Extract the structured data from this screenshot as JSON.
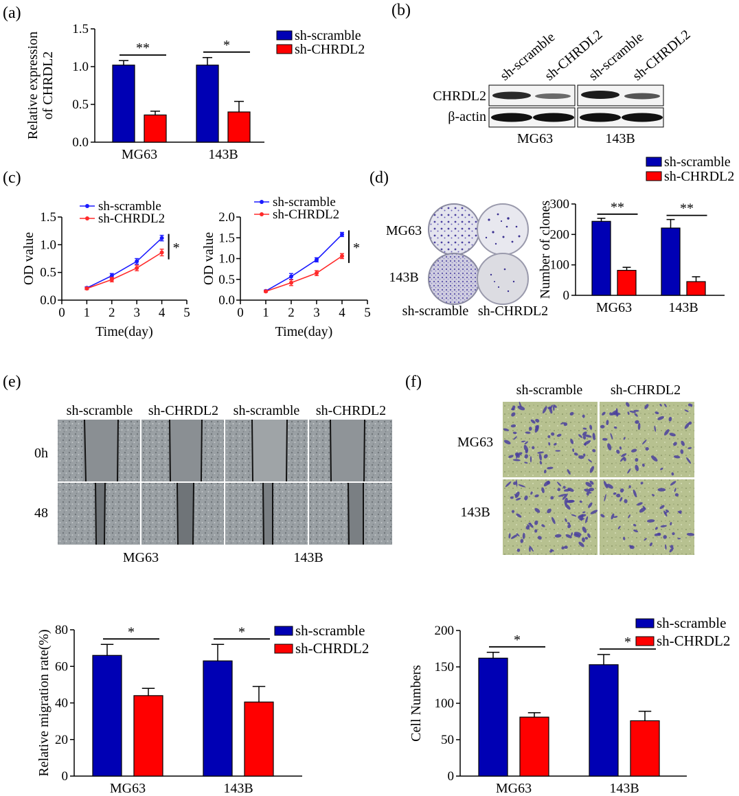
{
  "panels": {
    "a": {
      "label": "(a)",
      "chart_data": {
        "type": "bar",
        "categories": [
          "MG63",
          "143B"
        ],
        "series": [
          {
            "name": "sh-scramble",
            "values": [
              1.02,
              1.02
            ],
            "errors": [
              0.06,
              0.1
            ]
          },
          {
            "name": "sh-CHRDL2",
            "values": [
              0.36,
              0.4
            ],
            "errors": [
              0.05,
              0.14
            ]
          }
        ],
        "ylabel_lines": [
          "Relative expression",
          "of  CHRDL2"
        ],
        "ylim": [
          0,
          1.5
        ],
        "yticks": [
          "0.0",
          "0.5",
          "1.0",
          "1.5"
        ],
        "significance": [
          "**",
          "*"
        ],
        "legend_position": "top-right"
      }
    },
    "b": {
      "label": "(b)",
      "lane_labels": [
        "sh-scramble",
        "sh-CHRDL2",
        "sh-scramble",
        "sh-CHRDL2"
      ],
      "row_labels": [
        "CHRDL2",
        "β-actin"
      ],
      "group_labels": [
        "MG63",
        "143B"
      ]
    },
    "c": {
      "label": "(c)",
      "chart_data": [
        {
          "type": "line",
          "x": [
            1,
            2,
            3,
            4
          ],
          "series": [
            {
              "name": "sh-scramble",
              "values": [
                0.22,
                0.44,
                0.7,
                1.12
              ],
              "errors": [
                0.02,
                0.04,
                0.05,
                0.05
              ]
            },
            {
              "name": "sh-CHRDL2",
              "values": [
                0.21,
                0.37,
                0.58,
                0.86
              ],
              "errors": [
                0.02,
                0.04,
                0.05,
                0.06
              ]
            }
          ],
          "xlabel": "Time(day)",
          "ylabel": "OD value",
          "xlim": [
            0,
            5
          ],
          "ylim": [
            0,
            1.5
          ],
          "xticks": [
            "0",
            "1",
            "2",
            "3",
            "4",
            "5"
          ],
          "yticks": [
            "0.0",
            "0.5",
            "1.0",
            "1.5"
          ],
          "significance": "*",
          "legend_position": "top-left"
        },
        {
          "type": "line",
          "x": [
            1,
            2,
            3,
            4
          ],
          "series": [
            {
              "name": "sh-scramble",
              "values": [
                0.22,
                0.57,
                0.97,
                1.58
              ],
              "errors": [
                0.02,
                0.07,
                0.05,
                0.05
              ]
            },
            {
              "name": "sh-CHRDL2",
              "values": [
                0.21,
                0.42,
                0.65,
                1.06
              ],
              "errors": [
                0.02,
                0.07,
                0.06,
                0.06
              ]
            }
          ],
          "xlabel": "Time(day)",
          "ylabel": "OD value",
          "xlim": [
            0,
            5
          ],
          "ylim": [
            0,
            2.0
          ],
          "xticks": [
            "0",
            "1",
            "2",
            "3",
            "4",
            "5"
          ],
          "yticks": [
            "0.0",
            "0.5",
            "1.0",
            "1.5",
            "2.0"
          ],
          "significance": "*",
          "legend_position": "top-left"
        }
      ]
    },
    "d": {
      "label": "(d)",
      "image_row_labels": [
        "MG63",
        "143B"
      ],
      "image_col_labels": [
        "sh-scramble",
        "sh-CHRDL2"
      ],
      "chart_data": {
        "type": "bar",
        "categories": [
          "MG63",
          "143B"
        ],
        "series": [
          {
            "name": "sh-scramble",
            "values": [
              243,
              221
            ],
            "errors": [
              10,
              28
            ]
          },
          {
            "name": "sh-CHRDL2",
            "values": [
              82,
              45
            ],
            "errors": [
              10,
              16
            ]
          }
        ],
        "ylabel": "Number of clones",
        "ylim": [
          0,
          300
        ],
        "yticks": [
          "0",
          "100",
          "200",
          "300"
        ],
        "significance": [
          "**",
          "**"
        ],
        "legend_position": "top-right"
      }
    },
    "e": {
      "label": "(e)",
      "col_labels": [
        "sh-scramble",
        "sh-CHRDL2",
        "sh-scramble",
        "sh-CHRDL2"
      ],
      "row_labels": [
        "0h",
        "48"
      ],
      "group_labels": [
        "MG63",
        "143B"
      ],
      "chart_data": {
        "type": "bar",
        "categories": [
          "MG63",
          "143B"
        ],
        "series": [
          {
            "name": "sh-scramble",
            "values": [
              66,
              63
            ],
            "errors": [
              6,
              9
            ]
          },
          {
            "name": "sh-CHRDL2",
            "values": [
              44,
              40.5
            ],
            "errors": [
              4,
              8.5
            ]
          }
        ],
        "ylabel": "Relative migration rate(%)",
        "ylim": [
          0,
          80
        ],
        "yticks": [
          "0",
          "20",
          "40",
          "60",
          "80"
        ],
        "significance": [
          "*",
          "*"
        ],
        "legend_position": "top-right"
      }
    },
    "f": {
      "label": "(f)",
      "col_labels": [
        "sh-scramble",
        "sh-CHRDL2"
      ],
      "row_labels": [
        "MG63",
        "143B"
      ],
      "chart_data": {
        "type": "bar",
        "categories": [
          "MG63",
          "143B"
        ],
        "series": [
          {
            "name": "sh-scramble",
            "values": [
              162,
              153
            ],
            "errors": [
              8,
              14
            ]
          },
          {
            "name": "sh-CHRDL2",
            "values": [
              81,
              76
            ],
            "errors": [
              6,
              13
            ]
          }
        ],
        "ylabel": "Cell Numbers",
        "ylim": [
          0,
          200
        ],
        "yticks": [
          "0",
          "50",
          "100",
          "150",
          "200"
        ],
        "significance": [
          "*",
          "*"
        ],
        "legend_position": "top-right"
      }
    }
  },
  "colors": {
    "series1": "#0000b4",
    "series2": "#ff0000",
    "line1": "#1a1aff",
    "line2": "#ff2a2a",
    "scratch": "#8d9296",
    "transwell": "#b4bf8e",
    "cell": "#4a3f9e"
  }
}
